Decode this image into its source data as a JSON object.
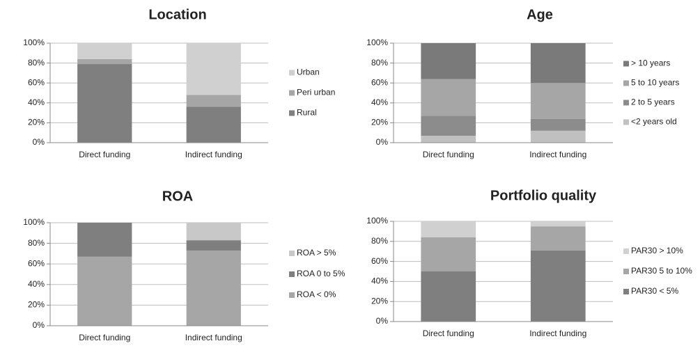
{
  "chart_data": [
    {
      "type": "stacked_bar",
      "title": "Location",
      "categories": [
        "Direct funding",
        "Indirect funding"
      ],
      "series": [
        {
          "name": "Rural",
          "color": "#7f7f7f",
          "values": [
            79,
            36
          ]
        },
        {
          "name": "Peri urban",
          "color": "#a6a6a6",
          "values": [
            5,
            12
          ]
        },
        {
          "name": "Urban",
          "color": "#d0d0d0",
          "values": [
            16,
            52
          ]
        }
      ],
      "ylim": [
        0,
        100
      ],
      "yticks": [
        {
          "value": 0,
          "label": "0%"
        },
        {
          "value": 20,
          "label": "20%"
        },
        {
          "value": 40,
          "label": "40%"
        },
        {
          "value": 60,
          "label": "60%"
        },
        {
          "value": 80,
          "label": "80%"
        },
        {
          "value": 100,
          "label": "100%"
        }
      ],
      "grid": true,
      "legend": "right"
    },
    {
      "type": "stacked_bar",
      "title": "Age",
      "categories": [
        "Direct funding",
        "Indirect funding"
      ],
      "series": [
        {
          "name": "<2 years old",
          "color": "#c0c0c0",
          "values": [
            7,
            12
          ]
        },
        {
          "name": "2 to 5 years",
          "color": "#8c8c8c",
          "values": [
            20,
            12
          ]
        },
        {
          "name": "5 to 10 years",
          "color": "#a6a6a6",
          "values": [
            37,
            36
          ]
        },
        {
          "name": "> 10 years",
          "color": "#7a7a7a",
          "values": [
            36,
            40
          ]
        }
      ],
      "ylim": [
        0,
        100
      ],
      "yticks": [
        {
          "value": 0,
          "label": "0%"
        },
        {
          "value": 20,
          "label": "20%"
        },
        {
          "value": 40,
          "label": "40%"
        },
        {
          "value": 60,
          "label": "60%"
        },
        {
          "value": 80,
          "label": "80%"
        },
        {
          "value": 100,
          "label": "100%"
        }
      ],
      "grid": true,
      "legend": "right"
    },
    {
      "type": "stacked_bar",
      "title": "ROA",
      "categories": [
        "Direct funding",
        "Indirect funding"
      ],
      "series": [
        {
          "name": "ROA < 0%",
          "color": "#a6a6a6",
          "values": [
            67,
            73
          ]
        },
        {
          "name": "ROA 0 to 5%",
          "color": "#7f7f7f",
          "values": [
            33,
            10
          ]
        },
        {
          "name": "ROA > 5%",
          "color": "#c8c8c8",
          "values": [
            0,
            17
          ]
        }
      ],
      "ylim": [
        0,
        100
      ],
      "yticks": [
        {
          "value": 0,
          "label": "0%"
        },
        {
          "value": 20,
          "label": "20%"
        },
        {
          "value": 40,
          "label": "40%"
        },
        {
          "value": 60,
          "label": "60%"
        },
        {
          "value": 80,
          "label": "80%"
        },
        {
          "value": 100,
          "label": "100%"
        }
      ],
      "grid": true,
      "legend": "right"
    },
    {
      "type": "stacked_bar",
      "title": "Portfolio quality",
      "categories": [
        "Direct funding",
        "Indirect funding"
      ],
      "series": [
        {
          "name": "PAR30 < 5%",
          "color": "#7f7f7f",
          "values": [
            50,
            71
          ]
        },
        {
          "name": "PAR30 5 to 10%",
          "color": "#a6a6a6",
          "values": [
            34,
            24
          ]
        },
        {
          "name": "PAR30 > 10%",
          "color": "#d0d0d0",
          "values": [
            16,
            5
          ]
        }
      ],
      "ylim": [
        0,
        100
      ],
      "yticks": [
        {
          "value": 0,
          "label": "0%"
        },
        {
          "value": 20,
          "label": "20%"
        },
        {
          "value": 40,
          "label": "40%"
        },
        {
          "value": 60,
          "label": "60%"
        },
        {
          "value": 80,
          "label": "80%"
        },
        {
          "value": 100,
          "label": "100%"
        }
      ],
      "grid": true,
      "legend": "right"
    }
  ]
}
